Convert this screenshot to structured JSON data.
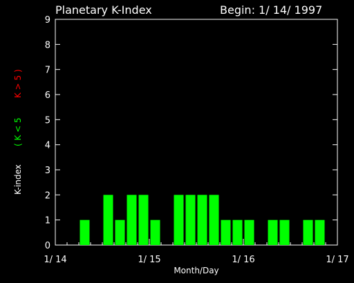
{
  "header": {
    "title": "Planetary K-Index",
    "begin": "Begin: 1/ 14/ 1997"
  },
  "colors": {
    "background": "#000000",
    "axis": "#ffffff",
    "bar": "#00ff00",
    "low_label": "#00ff00",
    "high_label": "#ff0000"
  },
  "chart_data": {
    "type": "bar",
    "title": "Planetary K-Index",
    "xlabel": "Month/Day",
    "ylabel": "K-index",
    "legend_low": "( K < 5",
    "legend_high": "K > 5 )",
    "ylim": [
      0,
      9
    ],
    "yticks": [
      "0",
      "1",
      "2",
      "3",
      "4",
      "5",
      "6",
      "7",
      "8",
      "9"
    ],
    "xticks": [
      "1/ 14",
      "1/ 15",
      "1/ 16",
      "1/ 17"
    ],
    "bins_per_day": 8,
    "values": [
      0,
      0,
      1,
      0,
      2,
      1,
      2,
      2,
      1,
      0,
      2,
      2,
      2,
      2,
      1,
      1,
      1,
      0,
      1,
      1,
      0,
      1,
      1,
      0
    ]
  }
}
